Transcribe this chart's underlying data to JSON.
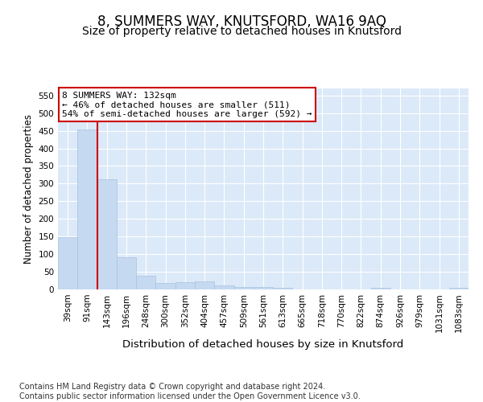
{
  "title": "8, SUMMERS WAY, KNUTSFORD, WA16 9AQ",
  "subtitle": "Size of property relative to detached houses in Knutsford",
  "xlabel": "Distribution of detached houses by size in Knutsford",
  "ylabel": "Number of detached properties",
  "categories": [
    "39sqm",
    "91sqm",
    "143sqm",
    "196sqm",
    "248sqm",
    "300sqm",
    "352sqm",
    "404sqm",
    "457sqm",
    "509sqm",
    "561sqm",
    "613sqm",
    "665sqm",
    "718sqm",
    "770sqm",
    "822sqm",
    "874sqm",
    "926sqm",
    "979sqm",
    "1031sqm",
    "1083sqm"
  ],
  "values": [
    148,
    454,
    313,
    92,
    38,
    19,
    21,
    22,
    11,
    6,
    6,
    5,
    1,
    0,
    0,
    0,
    5,
    0,
    0,
    0,
    4
  ],
  "bar_color": "#c5d9f0",
  "bar_edge_color": "#a8c4e0",
  "vline_x_index": 2,
  "vline_color": "#cc0000",
  "annotation_text": "8 SUMMERS WAY: 132sqm\n← 46% of detached houses are smaller (511)\n54% of semi-detached houses are larger (592) →",
  "annotation_box_color": "#ffffff",
  "annotation_box_edge": "#cc0000",
  "ylim": [
    0,
    570
  ],
  "yticks": [
    0,
    50,
    100,
    150,
    200,
    250,
    300,
    350,
    400,
    450,
    500,
    550
  ],
  "footer": "Contains HM Land Registry data © Crown copyright and database right 2024.\nContains public sector information licensed under the Open Government Licence v3.0.",
  "background_color": "#ffffff",
  "plot_bg_color": "#dce9f8",
  "grid_color": "#ffffff",
  "title_fontsize": 12,
  "subtitle_fontsize": 10,
  "xlabel_fontsize": 9.5,
  "ylabel_fontsize": 8.5,
  "tick_fontsize": 7.5,
  "footer_fontsize": 7,
  "annotation_fontsize": 8
}
